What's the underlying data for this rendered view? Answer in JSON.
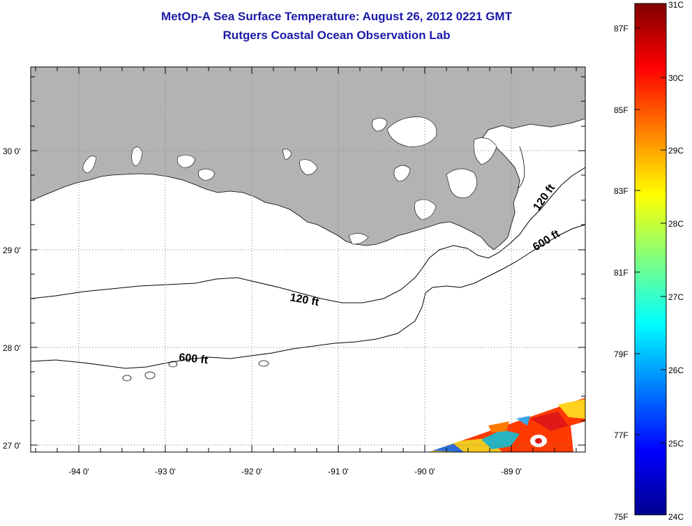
{
  "title_line1": "MetOp-A Sea Surface Temperature:  August 26, 2012 0221 GMT",
  "title_line2": "Rutgers Coastal Ocean Observation Lab",
  "map": {
    "lon_range": [
      -94.5,
      -88.2
    ],
    "lat_range": [
      26.93,
      30.85
    ],
    "lon_ticks": [
      "-94 0'",
      "-93 0'",
      "-92 0'",
      "-91 0'",
      "-90 0'",
      "-89 0'"
    ],
    "lat_ticks": [
      "30 0'",
      "29 0'",
      "28 0'",
      "27 0'"
    ],
    "contours": [
      {
        "label": "120 ft",
        "location": "mid-shelf"
      },
      {
        "label": "600 ft",
        "location": "south"
      },
      {
        "label": "120 ft",
        "location": "delta-east"
      },
      {
        "label": "600 ft",
        "location": "delta-east"
      }
    ],
    "land_color": "#b3b3b3"
  },
  "colorbar": {
    "f_labels": [
      "87F",
      "85F",
      "83F",
      "81F",
      "79F",
      "77F",
      "75F"
    ],
    "c_labels": [
      "31C",
      "30C",
      "29C",
      "28C",
      "27C",
      "26C",
      "25C",
      "24C"
    ],
    "colormap": "jet"
  }
}
